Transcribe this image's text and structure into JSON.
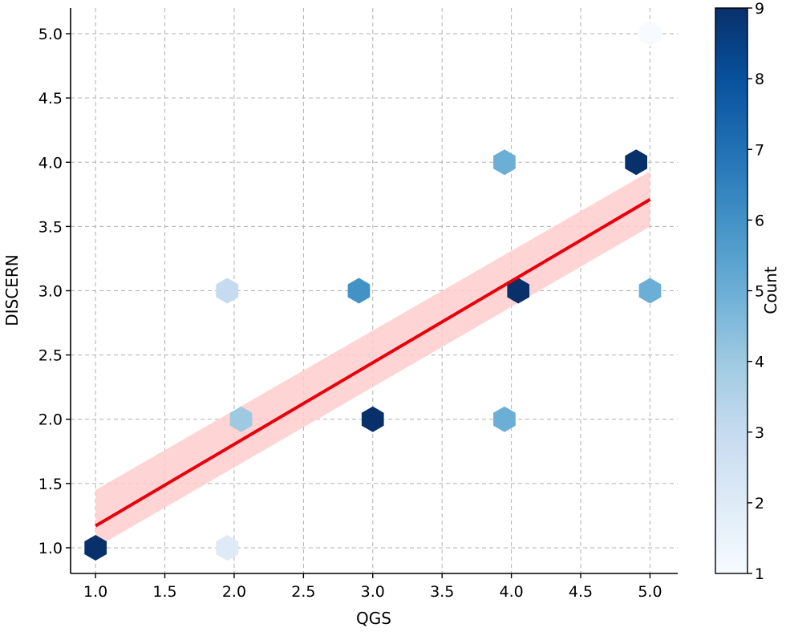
{
  "chart_data": {
    "type": "hexbin",
    "title": "",
    "xlabel": "QGS",
    "ylabel": "DISCERN",
    "xlim": [
      0.82,
      5.2
    ],
    "ylim": [
      0.8,
      5.2
    ],
    "xticks": [
      "1.0",
      "1.5",
      "2.0",
      "2.5",
      "3.0",
      "3.5",
      "4.0",
      "4.5",
      "5.0"
    ],
    "yticks": [
      "1.0",
      "1.5",
      "2.0",
      "2.5",
      "3.0",
      "3.5",
      "4.0",
      "4.5",
      "5.0"
    ],
    "grid": true,
    "hexbins": [
      {
        "x": 1.0,
        "y": 1.0,
        "count": 9
      },
      {
        "x": 1.95,
        "y": 1.0,
        "count": 2
      },
      {
        "x": 2.05,
        "y": 2.0,
        "count": 4
      },
      {
        "x": 1.95,
        "y": 3.0,
        "count": 3
      },
      {
        "x": 3.0,
        "y": 2.0,
        "count": 9
      },
      {
        "x": 2.9,
        "y": 3.0,
        "count": 6
      },
      {
        "x": 3.95,
        "y": 2.0,
        "count": 5
      },
      {
        "x": 4.05,
        "y": 3.0,
        "count": 9
      },
      {
        "x": 3.95,
        "y": 4.0,
        "count": 5
      },
      {
        "x": 4.9,
        "y": 4.0,
        "count": 9
      },
      {
        "x": 5.0,
        "y": 3.0,
        "count": 5
      },
      {
        "x": 5.0,
        "y": 5.0,
        "count": 1
      }
    ],
    "regression": {
      "x": [
        1.0,
        5.0
      ],
      "y": [
        1.17,
        3.71
      ],
      "ci_lower_at_ends": [
        1.0,
        3.5
      ],
      "ci_upper_at_ends": [
        1.45,
        3.93
      ],
      "color": "#e8000b",
      "band_color": "#ffcccc"
    },
    "colorbar": {
      "label": "Count",
      "min": 1,
      "max": 9,
      "ticks": [
        "1",
        "2",
        "3",
        "4",
        "5",
        "6",
        "7",
        "8",
        "9"
      ],
      "colormap": "Blues"
    }
  }
}
